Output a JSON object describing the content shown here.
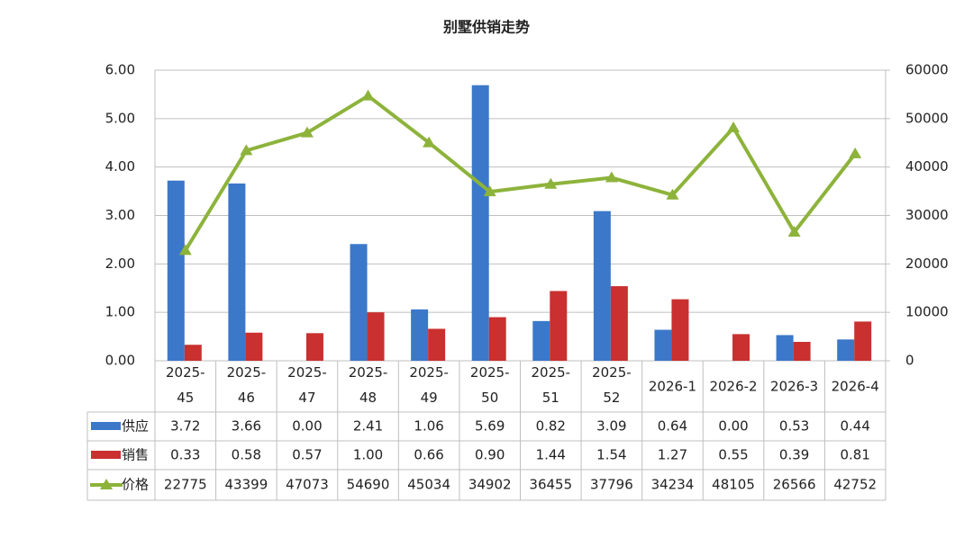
{
  "chart_data": {
    "type": "bar",
    "title": "别墅供销走势",
    "categories": [
      "2025-45",
      "2025-46",
      "2025-47",
      "2025-48",
      "2025-49",
      "2025-50",
      "2025-51",
      "2025-52",
      "2026-1",
      "2026-2",
      "2026-3",
      "2026-4"
    ],
    "series": [
      {
        "name": "供应",
        "color": "#3b78c9",
        "type": "bar",
        "values": [
          3.72,
          3.66,
          0,
          2.41,
          1.06,
          5.69,
          0.82,
          3.09,
          0.64,
          0,
          0.53,
          0.44
        ],
        "value_labels": [
          "3.72",
          "3.66",
          "0.00",
          "2.41",
          "1.06",
          "5.69",
          "0.82",
          "3.09",
          "0.64",
          "0.00",
          "0.53",
          "0.44"
        ]
      },
      {
        "name": "销售",
        "color": "#c9302f",
        "type": "bar",
        "values": [
          0.33,
          0.58,
          0.57,
          1,
          0.66,
          0.9,
          1.44,
          1.54,
          1.27,
          0.55,
          0.39,
          0.81
        ],
        "value_labels": [
          "0.33",
          "0.58",
          "0.57",
          "1.00",
          "0.66",
          "0.90",
          "1.44",
          "1.54",
          "1.27",
          "0.55",
          "0.39",
          "0.81"
        ]
      },
      {
        "name": "价格",
        "color": "#8db33b",
        "type": "line",
        "axis": "y2",
        "values": [
          22775,
          43399,
          47073,
          54690,
          45034,
          34902,
          36455,
          37796,
          34234,
          48105,
          26566,
          42752
        ]
      }
    ],
    "ylim": [
      0,
      6
    ],
    "yticks": [
      {
        "value": 0,
        "label": "0.00"
      },
      {
        "value": 1,
        "label": "1.00"
      },
      {
        "value": 2,
        "label": "2.00"
      },
      {
        "value": 3,
        "label": "3.00"
      },
      {
        "value": 4,
        "label": "4.00"
      },
      {
        "value": 5,
        "label": "5.00"
      },
      {
        "value": 6,
        "label": "6.00"
      }
    ],
    "y2lim": [
      0,
      60000
    ],
    "y2ticks": [
      0,
      10000,
      20000,
      30000,
      40000,
      50000,
      60000
    ],
    "grid": true
  }
}
